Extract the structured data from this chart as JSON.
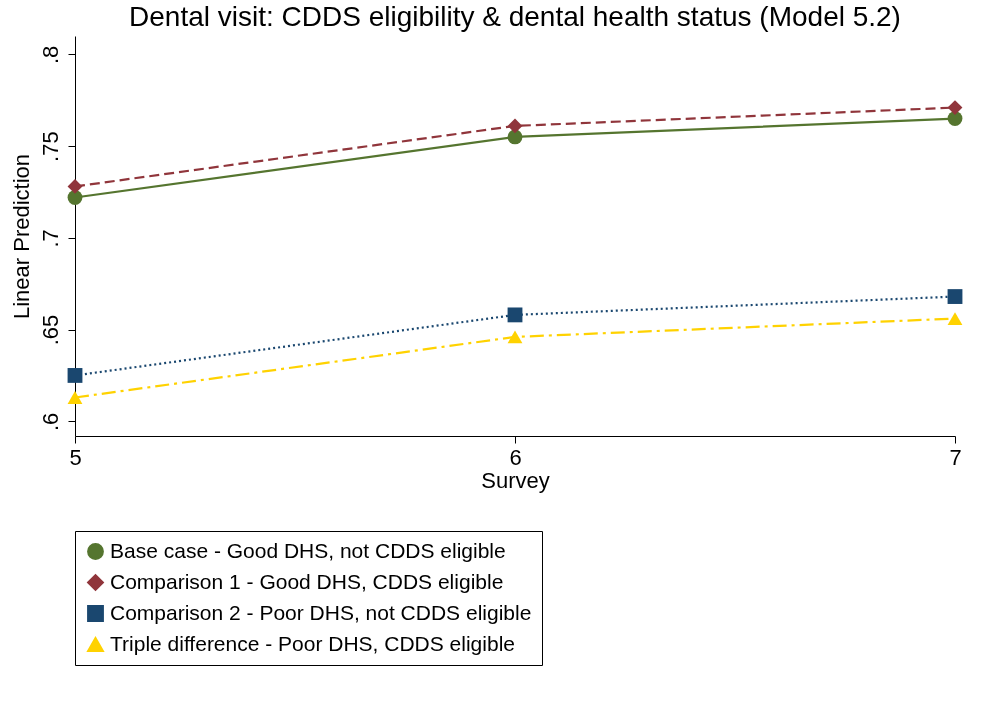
{
  "chart_data": {
    "type": "line",
    "title": "Dental visit: CDDS eligibility & dental health status (Model 5.2)",
    "xlabel": "Survey",
    "ylabel": "Linear Prediction",
    "x": [
      5,
      6,
      7
    ],
    "series": [
      {
        "name": "Base case - Good DHS, not CDDS eligible",
        "color": "#55752f",
        "values": [
          0.722,
          0.755,
          0.765
        ],
        "line_style": "solid",
        "marker": "circle"
      },
      {
        "name": "Comparison 1 - Good DHS, CDDS eligible",
        "color": "#90353b",
        "values": [
          0.728,
          0.761,
          0.771
        ],
        "line_style": "dashed",
        "marker": "diamond"
      },
      {
        "name": "Comparison 2 - Poor DHS, not CDDS eligible",
        "color": "#1a476f",
        "values": [
          0.625,
          0.658,
          0.668
        ],
        "line_style": "dotted",
        "marker": "square"
      },
      {
        "name": "Triple difference - Poor DHS, CDDS eligible",
        "color": "#ffd200",
        "values": [
          0.613,
          0.646,
          0.656
        ],
        "line_style": "dashdot",
        "marker": "triangle"
      }
    ],
    "xlim": [
      5,
      7
    ],
    "xticks": [
      5,
      6,
      7
    ],
    "ylim": [
      0.592,
      0.81
    ],
    "yticks": [
      {
        "value": 0.6,
        "label": ".6"
      },
      {
        "value": 0.65,
        "label": ".65"
      },
      {
        "value": 0.7,
        "label": ".7"
      },
      {
        "value": 0.75,
        "label": ".75"
      },
      {
        "value": 0.8,
        "label": ".8"
      }
    ],
    "grid": false,
    "legend": "bottom"
  }
}
